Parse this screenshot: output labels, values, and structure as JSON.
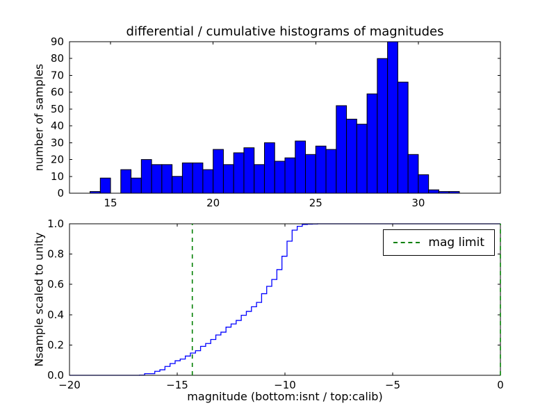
{
  "figure": {
    "title": "differential / cumulative histograms of magnitudes",
    "background": "#ffffff"
  },
  "chart_data": [
    {
      "type": "bar",
      "name": "differential-histogram",
      "ylabel": "number of samples",
      "bin_start": 14.0,
      "bin_width": 0.5,
      "counts": [
        1,
        9,
        0,
        14,
        9,
        20,
        17,
        17,
        10,
        18,
        18,
        14,
        26,
        17,
        24,
        27,
        17,
        30,
        19,
        21,
        31,
        23,
        28,
        26,
        52,
        44,
        41,
        59,
        80,
        90,
        66,
        23,
        11,
        2,
        1,
        1
      ],
      "xlim": [
        13,
        34
      ],
      "ylim": [
        0,
        90
      ],
      "xticks": [
        15,
        20,
        25,
        30
      ],
      "xtick_labels": [
        "15",
        "20",
        "25",
        "30"
      ],
      "yticks": [
        0,
        10,
        20,
        30,
        40,
        50,
        60,
        70,
        80,
        90
      ],
      "ytick_labels": [
        "0",
        "10",
        "20",
        "30",
        "40",
        "50",
        "60",
        "70",
        "80",
        "90"
      ],
      "bar_color": "#0000ff",
      "bar_edge_color": "#000000",
      "grid": false
    },
    {
      "type": "line",
      "name": "cumulative-histogram",
      "ylabel": "Nsample scaled to unity",
      "xlabel": "magnitude (bottom:isnt / top:calib)",
      "line_color": "#0000ff",
      "step_bin_start": -16.75,
      "step_bin_width": 0.2361,
      "source": "cumulative sum of differential-histogram counts scaled to unity",
      "xlim": [
        -20,
        0
      ],
      "ylim": [
        0,
        1
      ],
      "xticks": [
        -20,
        -15,
        -10,
        -5,
        0
      ],
      "xtick_labels": [
        "−20",
        "−15",
        "−10",
        "−5",
        "0"
      ],
      "yticks": [
        0,
        0.2,
        0.4,
        0.6,
        0.8,
        1
      ],
      "ytick_labels": [
        "0.0",
        "0.2",
        "0.4",
        "0.6",
        "0.8",
        "1.0"
      ],
      "mag_limit": -14.3,
      "vlines": [
        -14.3,
        0
      ],
      "vline_color": "#008000",
      "vline_style": "dashed",
      "legend": {
        "label": "mag limit",
        "position": "upper right"
      },
      "grid": false
    }
  ]
}
